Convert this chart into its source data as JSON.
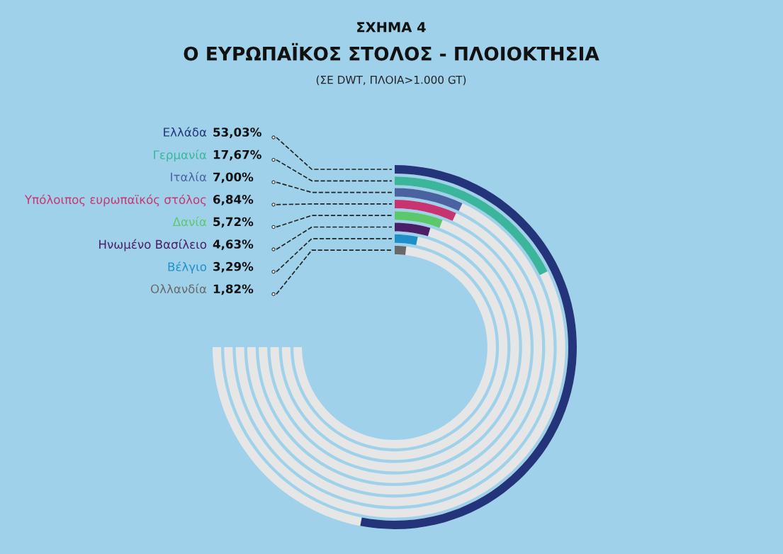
{
  "chart_data": {
    "type": "other",
    "title": "ΣΧΗΜΑ 4\nΟ ΕΥΡΩΠΑΪΚΟΣ ΣΤΟΛΟΣ - ΠΛΟΙΟΚΤΗΣΙΑ",
    "subtitle": "(ΣΕ DWT, ΠΛΟΙΑ>1.000 GT)",
    "categories": [
      "Ελλάδα",
      "Γερμανία",
      "Ιταλία",
      "Υπόλοιπος ευρωπαϊκός στόλος",
      "Δανία",
      "Ηνωμένο Βασίλειο",
      "Βέλγιο",
      "Ολλανδία"
    ],
    "values": [
      53.03,
      17.67,
      7.0,
      6.84,
      5.72,
      4.63,
      3.29,
      1.82
    ],
    "value_labels": [
      "53,03%",
      "17,67%",
      "7,00%",
      "6,84%",
      "5,72%",
      "4,63%",
      "3,29%",
      "1,82%"
    ],
    "colors": [
      "#23347a",
      "#3bb59b",
      "#4b62a0",
      "#c8346f",
      "#5dc86b",
      "#4a1f68",
      "#1f8fc9",
      "#686868"
    ]
  }
}
